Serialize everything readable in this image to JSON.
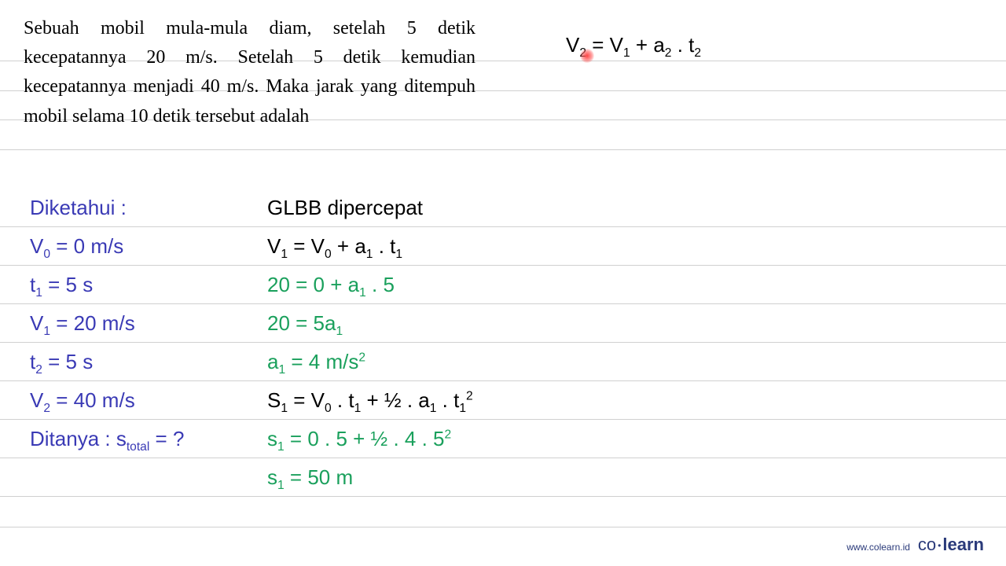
{
  "lines": {
    "positions": [
      77,
      115,
      152,
      190,
      288,
      337,
      386,
      435,
      484,
      533,
      582,
      631,
      670
    ]
  },
  "problem": {
    "text": "Sebuah mobil mula-mula diam, setelah 5 detik kecepatannya 20 m/s. Setelah 5 detik kemudian kecepatannya menjadi 40 m/s. Maka jarak yang ditempuh mobil selama 10 detik tersebut adalah",
    "fontsize": 24,
    "font": "serif",
    "color": "#000000"
  },
  "topright": {
    "html": "V<sub>2</sub> = V<sub>1</sub> + a<sub>2</sub> . t<sub>2</sub>",
    "color": "#000000",
    "red_dot": true
  },
  "known": {
    "title": "Diketahui :",
    "rows": [
      {
        "html": "V<sub>0</sub> = 0 m/s"
      },
      {
        "html": "t<sub>1</sub> = 5 s"
      },
      {
        "html": "V<sub>1</sub> = 20 m/s"
      },
      {
        "html": "t<sub>2</sub> = 5 s"
      },
      {
        "html": "V<sub>2</sub> = 40 m/s"
      },
      {
        "html": "Ditanya : s<sub>total</sub> = ?"
      }
    ],
    "color": "#3a3ab5"
  },
  "work": {
    "title": "GLBB dipercepat",
    "rows": [
      {
        "class": "black",
        "html": "V<sub>1</sub> = V<sub>0</sub> + a<sub>1</sub> . t<sub>1</sub>"
      },
      {
        "class": "green",
        "html": "20 = 0 + a<sub>1</sub> . 5"
      },
      {
        "class": "green",
        "html": "20 = 5a<sub>1</sub>"
      },
      {
        "class": "green",
        "html": "a<sub>1</sub> = 4 m/s<sup>2</sup>"
      },
      {
        "class": "black",
        "html": "S<sub>1</sub> = V<sub>0</sub> . t<sub>1</sub> + ½ . a<sub>1</sub> . t<sub>1</sub><sup>2</sup>"
      },
      {
        "class": "green",
        "html": "s<sub>1</sub> = 0 . 5 + ½ . 4 . 5<sup>2</sup>"
      },
      {
        "class": "green",
        "html": "s<sub>1</sub> = 50 m"
      }
    ]
  },
  "style": {
    "background": "#ffffff",
    "rule_color": "#d0d0d0",
    "blue": "#3a3ab5",
    "green": "#1aa05c",
    "black": "#000000",
    "line_height": 49,
    "font": "Comic Sans MS",
    "fontsize": 26
  },
  "footer": {
    "url": "www.colearn.id",
    "logo_co": "co",
    "logo_dot": "•",
    "logo_learn": "learn",
    "color": "#2a3a7a"
  }
}
